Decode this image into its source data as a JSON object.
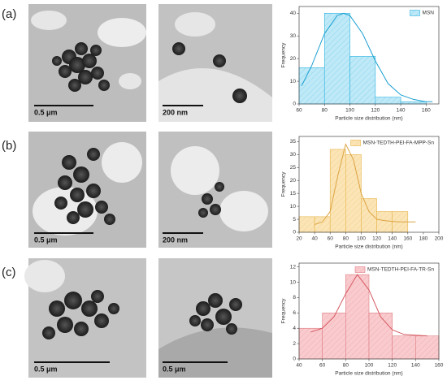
{
  "panels": [
    {
      "label": "(a)",
      "scale_bars": [
        "0.5 μm",
        "200 nm"
      ]
    },
    {
      "label": "(b)",
      "scale_bars": [
        "0.5 μm",
        "200 nm"
      ]
    },
    {
      "label": "(c)",
      "scale_bars": [
        "0.5 μm",
        "0.5 μm"
      ]
    }
  ],
  "chart_data": [
    {
      "type": "histogram",
      "x_label": "Particle size distribution (nm)",
      "y_label": "Frequency",
      "series": [
        {
          "name": "MSN",
          "color": "#bfe9f7",
          "edge_color": "#2bb3e0",
          "bins": [
            60,
            80,
            100,
            120,
            140,
            160
          ],
          "values": [
            16,
            40,
            21,
            3,
            1
          ]
        }
      ],
      "fit": {
        "color": "#1b9fd0",
        "x": [
          62,
          70,
          80,
          90,
          95,
          100,
          110,
          120,
          130,
          140,
          150,
          160,
          165
        ],
        "values": [
          8,
          17,
          31,
          39,
          40,
          39,
          31,
          19,
          9,
          4,
          2,
          1,
          1
        ]
      },
      "xlim": [
        60,
        170
      ],
      "xticks": [
        60,
        80,
        100,
        120,
        140,
        160
      ],
      "ylim": [
        0,
        43
      ],
      "yticks": [
        0,
        10,
        20,
        30,
        40
      ],
      "legend": "top-right"
    },
    {
      "type": "histogram",
      "x_label": "Particle size distribution (nm)",
      "y_label": "Frequency",
      "series": [
        {
          "name": "MSN-TEDTH-PEI-FA-MPP-Sn",
          "color": "#fbe4b6",
          "edge_color": "#e6b54a",
          "bins": [
            20,
            40,
            60,
            80,
            100,
            120,
            140,
            160
          ],
          "values": [
            6,
            6,
            32,
            30,
            13,
            8,
            8
          ]
        }
      ],
      "fit": {
        "color": "#dca443",
        "x": [
          40,
          50,
          60,
          70,
          80,
          90,
          100,
          110,
          120,
          130,
          140,
          150,
          160,
          170
        ],
        "values": [
          3,
          4,
          8,
          22,
          34,
          28,
          15,
          8,
          5,
          4.5,
          4.2,
          4,
          4,
          4
        ]
      },
      "xlim": [
        20,
        200
      ],
      "xticks": [
        20,
        40,
        60,
        80,
        100,
        120,
        140,
        160,
        180,
        200
      ],
      "ylim": [
        0,
        37
      ],
      "yticks": [
        0,
        5,
        10,
        15,
        20,
        25,
        30,
        35
      ],
      "legend": "top-right"
    },
    {
      "type": "histogram",
      "x_label": "Particle size distribution (nm)",
      "y_label": "Frequency",
      "series": [
        {
          "name": "MSN-TEDTH-PEI-FA-TR-Sn",
          "color": "#f9cbce",
          "edge_color": "#dd7c82",
          "bins": [
            40,
            60,
            80,
            100,
            120,
            140,
            160
          ],
          "values": [
            4,
            6,
            11,
            6,
            3,
            3
          ]
        }
      ],
      "fit": {
        "color": "#d65a62",
        "x": [
          50,
          60,
          70,
          80,
          90,
          100,
          110,
          120,
          130,
          140,
          150
        ],
        "values": [
          3.5,
          4,
          5.5,
          8.5,
          11,
          9,
          5.5,
          3.8,
          3.2,
          3.1,
          3
        ]
      },
      "xlim": [
        40,
        160
      ],
      "xticks": [
        40,
        60,
        80,
        100,
        120,
        140,
        160
      ],
      "ylim": [
        0,
        12.5
      ],
      "yticks": [
        0,
        2,
        4,
        6,
        8,
        10,
        12
      ],
      "legend": "top-right"
    }
  ]
}
